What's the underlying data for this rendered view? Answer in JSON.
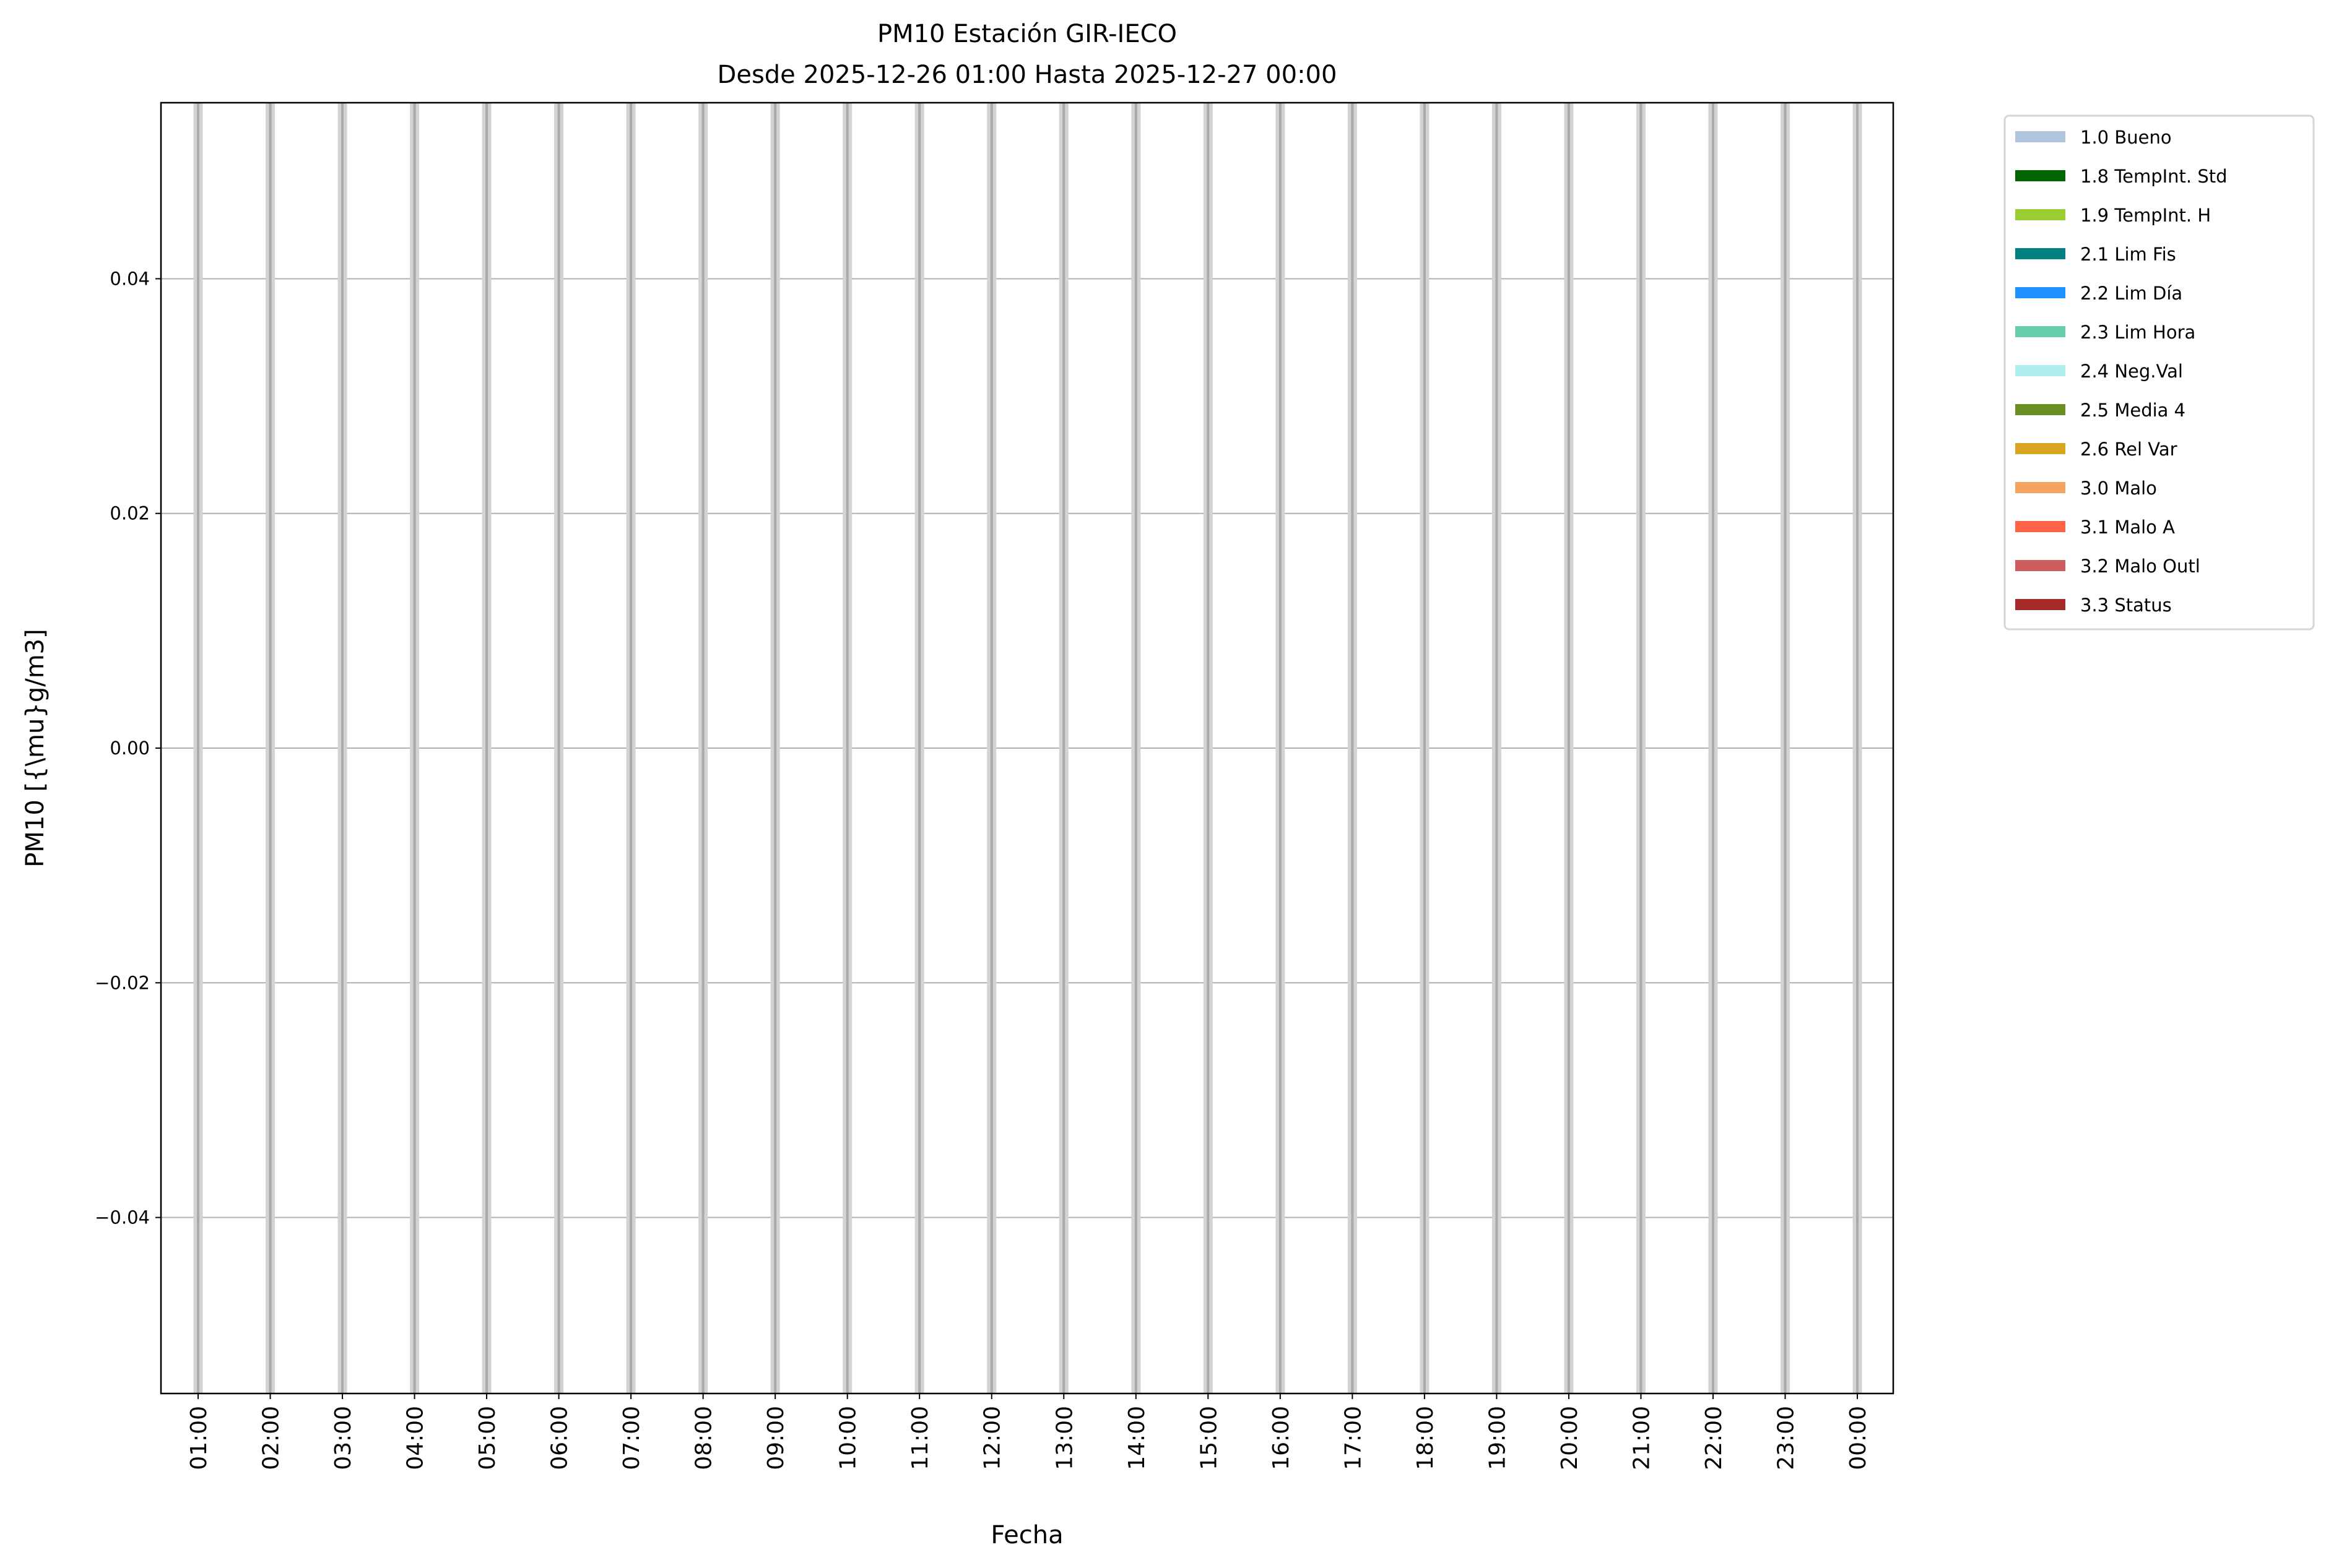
{
  "chart_data": {
    "type": "bar",
    "title": "PM10 Estación GIR-IECO",
    "subtitle": "Desde 2025-12-26 01:00 Hasta 2025-12-27 00:00",
    "xlabel": "Fecha",
    "ylabel": "PM10 [{\\mu}g/m3]",
    "ylim": [
      -0.055,
      0.055
    ],
    "yticks": [
      -0.04,
      -0.02,
      0.0,
      0.02,
      0.04
    ],
    "ytick_labels": [
      "−0.04",
      "−0.02",
      "0.00",
      "0.02",
      "0.04"
    ],
    "categories": [
      "01:00",
      "02:00",
      "03:00",
      "04:00",
      "05:00",
      "06:00",
      "07:00",
      "08:00",
      "09:00",
      "10:00",
      "11:00",
      "12:00",
      "13:00",
      "14:00",
      "15:00",
      "16:00",
      "17:00",
      "18:00",
      "19:00",
      "20:00",
      "21:00",
      "22:00",
      "23:00",
      "00:00"
    ],
    "series": [],
    "grid": true,
    "hour_marker_color": "#d3d3d3",
    "legend_placement": "outside-top-right",
    "legend": [
      {
        "label": "1.0 Bueno",
        "color": "#b0c4de"
      },
      {
        "label": "1.8 TempInt. Std",
        "color": "#006400"
      },
      {
        "label": "1.9 TempInt. H",
        "color": "#9acd32"
      },
      {
        "label": "2.1 Lim Fis",
        "color": "#008080"
      },
      {
        "label": "2.2 Lim Día",
        "color": "#1e90ff"
      },
      {
        "label": "2.3 Lim Hora",
        "color": "#66cdaa"
      },
      {
        "label": "2.4 Neg.Val",
        "color": "#afeeee"
      },
      {
        "label": "2.5 Media 4",
        "color": "#6b8e23"
      },
      {
        "label": "2.6 Rel Var",
        "color": "#daa520"
      },
      {
        "label": "3.0 Malo",
        "color": "#f4a460"
      },
      {
        "label": "3.1 Malo A",
        "color": "#ff6347"
      },
      {
        "label": "3.2 Malo Outl",
        "color": "#cd5c5c"
      },
      {
        "label": "3.3 Status",
        "color": "#a52a2a"
      }
    ]
  }
}
